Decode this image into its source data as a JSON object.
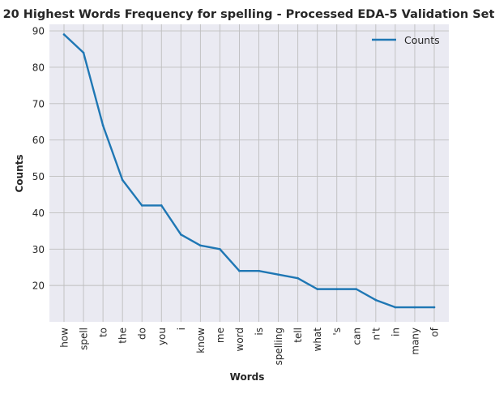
{
  "chart_data": {
    "type": "line",
    "title": "20 Highest Words Frequency for spelling - Processed EDA-5 Validation Set",
    "xlabel": "Words",
    "ylabel": "Counts",
    "categories": [
      "how",
      "spell",
      "to",
      "the",
      "do",
      "you",
      "i",
      "know",
      "me",
      "word",
      "is",
      "spelling",
      "tell",
      "what",
      "'s",
      "can",
      "n't",
      "in",
      "many",
      "of"
    ],
    "series": [
      {
        "name": "Counts",
        "values": [
          89,
          84,
          64,
          49,
          42,
          42,
          34,
          31,
          30,
          24,
          24,
          23,
          22,
          19,
          19,
          19,
          16,
          14,
          14,
          14
        ],
        "color": "#1f77b4"
      }
    ],
    "ylim": [
      10,
      91.8
    ],
    "yticks": [
      20,
      30,
      40,
      50,
      60,
      70,
      80,
      90
    ],
    "grid": true,
    "legend_position": "upper right",
    "background": "#eaeaf2",
    "grid_color": "#bebebe"
  }
}
